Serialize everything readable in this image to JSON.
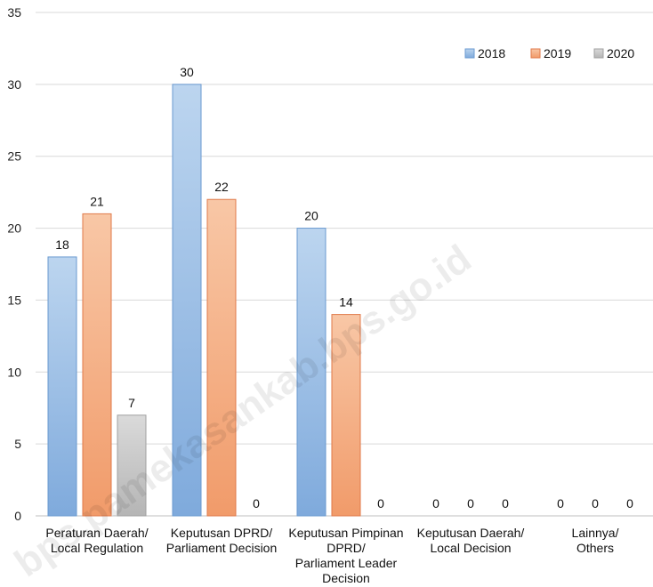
{
  "watermark": "bps.pamekasankab.bps.go.id",
  "chart_data": {
    "type": "bar",
    "categories": [
      [
        "Peraturan Daerah/",
        "Local Regulation"
      ],
      [
        "Keputusan DPRD/",
        "Parliament Decision"
      ],
      [
        "Keputusan Pimpinan",
        "DPRD/",
        "Parliament Leader",
        "Decision"
      ],
      [
        "Keputusan Daerah/",
        "Local Decision"
      ],
      [
        "Lainnya/",
        "Others"
      ]
    ],
    "series": [
      {
        "name": "2018",
        "values": [
          18,
          30,
          20,
          0,
          0
        ],
        "color": "#9DC3E6",
        "stroke": "#6A9AD0"
      },
      {
        "name": "2019",
        "values": [
          21,
          22,
          14,
          0,
          0
        ],
        "color": "#F4B183",
        "stroke": "#E07A4A"
      },
      {
        "name": "2020",
        "values": [
          7,
          0,
          0,
          0,
          0
        ],
        "color": "#C9C9C9",
        "stroke": "#A0A0A0"
      }
    ],
    "ylim": [
      0,
      35
    ],
    "yticks": [
      0,
      5,
      10,
      15,
      20,
      25,
      30,
      35
    ],
    "grid": true,
    "legend_position": "top-right",
    "data_labels": true
  }
}
